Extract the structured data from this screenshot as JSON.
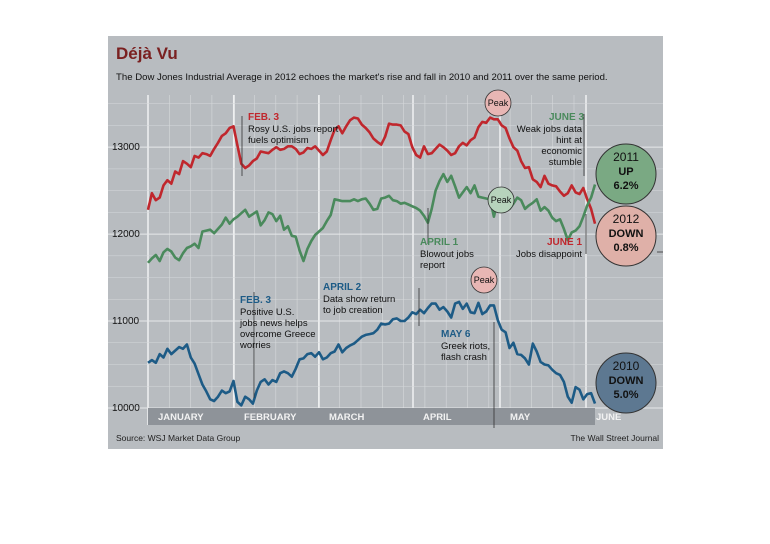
{
  "title": "Déjà Vu",
  "subtitle": "The Dow Jones Industrial Average in 2012 echoes the market's rise and fall in 2010 and 2011 over the same period.",
  "source": "Source: WSJ Market Data Group",
  "credit": "The Wall Street Journal",
  "colors": {
    "y2012": "#c0272d",
    "y2011": "#4a8a5c",
    "y2010": "#1d5b86",
    "panel": "#b8bcc0",
    "grid": "#d6d9db",
    "monthbar": "#8e9399"
  },
  "chart_data": {
    "type": "line",
    "ylim": [
      9850,
      13600
    ],
    "yticks": [
      10000,
      11000,
      12000,
      13000
    ],
    "ytick_labels": [
      "10000",
      "11000",
      "12000",
      "13000"
    ],
    "months": [
      "JANUARY",
      "FEBRUARY",
      "MARCH",
      "APRIL",
      "MAY",
      "JUNE"
    ],
    "series": [
      {
        "name": "2012",
        "color": "#c0272d",
        "values": [
          12280,
          12470,
          12390,
          12420,
          12560,
          12620,
          12580,
          12720,
          12690,
          12840,
          12810,
          12770,
          12900,
          12880,
          12930,
          12920,
          12900,
          12980,
          13050,
          13130,
          13160,
          13220,
          13240,
          13020,
          12810,
          12760,
          12790,
          12840,
          12870,
          12950,
          12940,
          12930,
          12970,
          13000,
          12970,
          12980,
          13010,
          13010,
          12980,
          12920,
          12940,
          12990,
          12980,
          13010,
          12960,
          12910,
          12950,
          13080,
          13200,
          13240,
          13160,
          13240,
          13310,
          13340,
          13330,
          13260,
          13220,
          13170,
          13100,
          13060,
          13030,
          13120,
          13270,
          13260,
          13260,
          13250,
          13180,
          13150,
          13000,
          12910,
          12880,
          13010,
          12920,
          12930,
          12980,
          13030,
          13000,
          12960,
          12910,
          12930,
          13010,
          13050,
          13020,
          13080,
          13110,
          13230,
          13290,
          13280,
          13340,
          13320,
          13320,
          13250,
          13220,
          13100,
          13000,
          12960,
          12840,
          12760,
          12770,
          12630,
          12600,
          12540,
          12670,
          12580,
          12560,
          12550,
          12490,
          12440,
          12470,
          12560,
          12480,
          12460,
          12530,
          12400,
          12290,
          12120
        ]
      },
      {
        "name": "2011",
        "color": "#4a8a5c",
        "values": [
          11670,
          11720,
          11760,
          11690,
          11790,
          11830,
          11800,
          11730,
          11700,
          11780,
          11840,
          11860,
          11890,
          11840,
          12030,
          12040,
          12050,
          12010,
          12060,
          12110,
          12190,
          12120,
          12170,
          12200,
          12240,
          12280,
          12200,
          12230,
          12260,
          12100,
          12160,
          12250,
          12230,
          12150,
          12210,
          12050,
          12090,
          11980,
          11970,
          11810,
          11690,
          11830,
          11920,
          11990,
          12030,
          12070,
          12150,
          12220,
          12400,
          12390,
          12380,
          12380,
          12380,
          12400,
          12380,
          12400,
          12410,
          12350,
          12280,
          12290,
          12410,
          12420,
          12440,
          12390,
          12380,
          12350,
          12360,
          12340,
          12320,
          12300,
          12270,
          12210,
          12130,
          12290,
          12500,
          12610,
          12690,
          12600,
          12670,
          12550,
          12420,
          12480,
          12540,
          12470,
          12560,
          12430,
          12420,
          12410,
          12400,
          12200,
          12390,
          12380,
          12280,
          12290,
          12350,
          12420,
          12390,
          12290,
          12330,
          12360,
          12400,
          12270,
          12310,
          12270,
          12190,
          12150,
          12170,
          12060,
          11930,
          12020,
          12040,
          12090,
          12200,
          12330,
          12420,
          12570
        ]
      },
      {
        "name": "2010",
        "color": "#1d5b86",
        "values": [
          10520,
          10550,
          10520,
          10620,
          10580,
          10680,
          10620,
          10660,
          10700,
          10680,
          10730,
          10580,
          10510,
          10390,
          10270,
          10190,
          10100,
          10080,
          10130,
          10200,
          10170,
          10190,
          10310,
          10070,
          10030,
          10130,
          10100,
          10050,
          10200,
          10300,
          10330,
          10270,
          10320,
          10300,
          10400,
          10420,
          10400,
          10360,
          10450,
          10560,
          10570,
          10620,
          10630,
          10590,
          10640,
          10560,
          10580,
          10630,
          10650,
          10730,
          10640,
          10690,
          10720,
          10740,
          10780,
          10820,
          10840,
          10850,
          10860,
          10900,
          10970,
          10960,
          10970,
          11020,
          11030,
          11000,
          11000,
          11040,
          11100,
          11080,
          11130,
          11090,
          11150,
          11200,
          11200,
          11130,
          11160,
          11110,
          11040,
          11200,
          11220,
          11140,
          11200,
          11100,
          11090,
          11210,
          11080,
          11110,
          11180,
          11180,
          11010,
          10900,
          10870,
          10690,
          10750,
          10620,
          10610,
          10570,
          10500,
          10740,
          10650,
          10530,
          10500,
          10490,
          10440,
          10400,
          10380,
          10300,
          10130,
          10060,
          10240,
          10210,
          10100,
          10160,
          10170,
          10050
        ]
      }
    ],
    "annotations": [
      {
        "id": "feb3-2012",
        "date": "FEB. 3",
        "text": [
          "Rosy U.S. jobs report",
          "fuels optimism"
        ]
      },
      {
        "id": "june3-2011",
        "date": "JUNE 3",
        "text": [
          "Weak jobs data",
          "hint at",
          "economic",
          "stumble"
        ]
      },
      {
        "id": "april1-2011",
        "date": "APRIL 1",
        "text": [
          "Blowout jobs",
          "report"
        ]
      },
      {
        "id": "june1-2012",
        "date": "JUNE 1",
        "text": [
          "Jobs disappoint"
        ]
      },
      {
        "id": "feb3-2010",
        "date": "FEB. 3",
        "text": [
          "Positive U.S.",
          "jobs news helps",
          "overcome Greece",
          "worries"
        ]
      },
      {
        "id": "april2-2010",
        "date": "APRIL 2",
        "text": [
          "Data show return",
          "to job creation"
        ]
      },
      {
        "id": "may6-2010",
        "date": "MAY 6",
        "text": [
          "Greek riots,",
          "flash crash"
        ]
      }
    ],
    "peak_label": "Peak",
    "summary_badges": [
      {
        "id": "badge-2011",
        "year": "2011",
        "direction": "UP",
        "pct": "6.2%"
      },
      {
        "id": "badge-2012",
        "year": "2012",
        "direction": "DOWN",
        "pct": "0.8%"
      },
      {
        "id": "badge-2010",
        "year": "2010",
        "direction": "DOWN",
        "pct": "5.0%"
      }
    ]
  }
}
